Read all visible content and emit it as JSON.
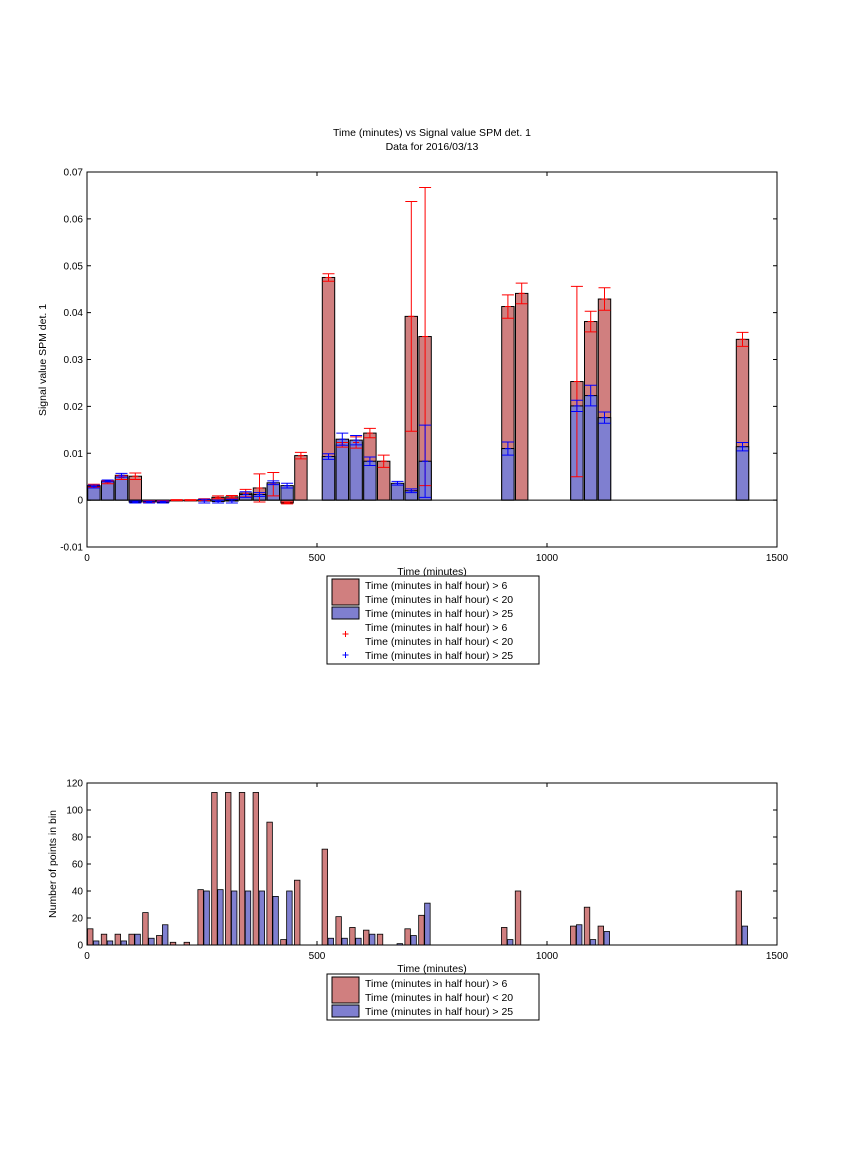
{
  "colors": {
    "series1": "#d07f7f",
    "series2": "#7f7fd0",
    "err1": "#ff0000",
    "err2": "#0000ff",
    "axis": "#000000"
  },
  "chart_data": [
    {
      "type": "bar",
      "title": "Time (minutes) vs Signal value SPM det. 1",
      "subtitle": "Data for 2016/03/13",
      "xlabel": "Time (minutes)",
      "ylabel": "Signal value SPM det. 1",
      "xlim": [
        0,
        1500
      ],
      "ylim": [
        -0.01,
        0.07
      ],
      "xticks": [
        "0",
        "500",
        "1000",
        "1500"
      ],
      "xtick_values": [
        0,
        500,
        1000,
        1500
      ],
      "yticks": [
        "-0.01",
        "0",
        "0.01",
        "0.02",
        "0.03",
        "0.04",
        "0.05",
        "0.06",
        "0.07"
      ],
      "ytick_values": [
        -0.01,
        0,
        0.01,
        0.02,
        0.03,
        0.04,
        0.05,
        0.06,
        0.07
      ],
      "grid": false,
      "legend_position": "bottom-outside",
      "legend": [
        {
          "kind": "bar",
          "series": 0,
          "lines": [
            "Time (minutes in half hour) > 6",
            "Time (minutes in half hour) < 20"
          ]
        },
        {
          "kind": "bar",
          "series": 1,
          "lines": [
            "Time (minutes in half hour) > 25"
          ]
        },
        {
          "kind": "marker",
          "series": 0,
          "lines": [
            "Time (minutes in half hour) > 6",
            "Time (minutes in half hour) < 20"
          ]
        },
        {
          "kind": "marker",
          "series": 1,
          "lines": [
            "Time (minutes in half hour) > 25"
          ]
        }
      ],
      "series": [
        {
          "points": [
            {
              "x": 15,
              "y": 0.0031,
              "e": 0.0003
            },
            {
              "x": 45,
              "y": 0.0038,
              "e": 0.0003
            },
            {
              "x": 75,
              "y": 0.0048,
              "e": 0.0004
            },
            {
              "x": 105,
              "y": 0.0051,
              "e": 0.0007
            },
            {
              "x": 135,
              "y": -0.0003,
              "e": 0.0002
            },
            {
              "x": 165,
              "y": -0.0002,
              "e": 0.0001
            },
            {
              "x": 195,
              "y": 0.0,
              "e": 0.0001
            },
            {
              "x": 225,
              "y": 0.0,
              "e": 0.0001
            },
            {
              "x": 255,
              "y": 0.0001,
              "e": 0.0002
            },
            {
              "x": 285,
              "y": 0.0006,
              "e": 0.0003
            },
            {
              "x": 315,
              "y": 0.0007,
              "e": 0.0003
            },
            {
              "x": 345,
              "y": 0.0015,
              "e": 0.0008
            },
            {
              "x": 375,
              "y": 0.0026,
              "e": 0.003
            },
            {
              "x": 405,
              "y": 0.0034,
              "e": 0.0025
            },
            {
              "x": 435,
              "y": -0.0006,
              "e": 0.0002
            },
            {
              "x": 465,
              "y": 0.0095,
              "e": 0.0007
            },
            {
              "x": 525,
              "y": 0.0475,
              "e": 0.0008
            },
            {
              "x": 555,
              "y": 0.0118,
              "e": 0.0005
            },
            {
              "x": 585,
              "y": 0.0123,
              "e": 0.0012
            },
            {
              "x": 615,
              "y": 0.0143,
              "e": 0.001
            },
            {
              "x": 645,
              "y": 0.0083,
              "e": 0.0013
            },
            {
              "x": 705,
              "y": 0.0392,
              "e": 0.0245
            },
            {
              "x": 735,
              "y": 0.0349,
              "e": 0.0318
            },
            {
              "x": 915,
              "y": 0.0413,
              "e": 0.0025
            },
            {
              "x": 945,
              "y": 0.0441,
              "e": 0.0022
            },
            {
              "x": 1065,
              "y": 0.0253,
              "e": 0.0203
            },
            {
              "x": 1095,
              "y": 0.0381,
              "e": 0.0022
            },
            {
              "x": 1125,
              "y": 0.0429,
              "e": 0.0024
            },
            {
              "x": 1425,
              "y": 0.0343,
              "e": 0.0015
            }
          ]
        },
        {
          "points": [
            {
              "x": 15,
              "y": 0.0029,
              "e": 0.0003
            },
            {
              "x": 45,
              "y": 0.0041,
              "e": 0.0002
            },
            {
              "x": 75,
              "y": 0.0053,
              "e": 0.0004
            },
            {
              "x": 105,
              "y": -0.0004,
              "e": 0.0002
            },
            {
              "x": 135,
              "y": -0.0004,
              "e": 0.0002
            },
            {
              "x": 165,
              "y": -0.0004,
              "e": 0.0002
            },
            {
              "x": 255,
              "y": -0.0002,
              "e": 0.0004
            },
            {
              "x": 285,
              "y": -0.0003,
              "e": 0.0003
            },
            {
              "x": 315,
              "y": -0.0002,
              "e": 0.0004
            },
            {
              "x": 345,
              "y": 0.0012,
              "e": 0.0006
            },
            {
              "x": 375,
              "y": 0.0012,
              "e": 0.0004
            },
            {
              "x": 405,
              "y": 0.0037,
              "e": 0.0004
            },
            {
              "x": 435,
              "y": 0.0031,
              "e": 0.0005
            },
            {
              "x": 525,
              "y": 0.0093,
              "e": 0.0006
            },
            {
              "x": 555,
              "y": 0.013,
              "e": 0.0013
            },
            {
              "x": 585,
              "y": 0.0128,
              "e": 0.001
            },
            {
              "x": 615,
              "y": 0.0083,
              "e": 0.0009
            },
            {
              "x": 675,
              "y": 0.0036,
              "e": 0.0004
            },
            {
              "x": 705,
              "y": 0.002,
              "e": 0.0004
            },
            {
              "x": 735,
              "y": 0.0083,
              "e": 0.0077
            },
            {
              "x": 915,
              "y": 0.011,
              "e": 0.0014
            },
            {
              "x": 1065,
              "y": 0.0201,
              "e": 0.0012
            },
            {
              "x": 1095,
              "y": 0.0223,
              "e": 0.0022
            },
            {
              "x": 1125,
              "y": 0.0176,
              "e": 0.0012
            },
            {
              "x": 1425,
              "y": 0.0114,
              "e": 0.0009
            }
          ]
        }
      ]
    },
    {
      "type": "bar",
      "title": "",
      "xlabel": "Time (minutes)",
      "ylabel": "Number of points in bin",
      "xlim": [
        0,
        1500
      ],
      "ylim": [
        0,
        120
      ],
      "xticks": [
        "0",
        "500",
        "1000",
        "1500"
      ],
      "xtick_values": [
        0,
        500,
        1000,
        1500
      ],
      "yticks": [
        "0",
        "20",
        "40",
        "60",
        "80",
        "100",
        "120"
      ],
      "ytick_values": [
        0,
        20,
        40,
        60,
        80,
        100,
        120
      ],
      "grid": false,
      "legend_position": "bottom-outside",
      "legend": [
        {
          "kind": "bar",
          "series": 0,
          "lines": [
            "Time (minutes in half hour) > 6",
            "Time (minutes in half hour) < 20"
          ]
        },
        {
          "kind": "bar",
          "series": 1,
          "lines": [
            "Time (minutes in half hour) > 25"
          ]
        }
      ],
      "series": [
        {
          "points": [
            {
              "x": 7,
              "y": 12
            },
            {
              "x": 37,
              "y": 8
            },
            {
              "x": 67,
              "y": 8
            },
            {
              "x": 97,
              "y": 8
            },
            {
              "x": 127,
              "y": 24
            },
            {
              "x": 157,
              "y": 7
            },
            {
              "x": 187,
              "y": 2
            },
            {
              "x": 217,
              "y": 2
            },
            {
              "x": 247,
              "y": 41
            },
            {
              "x": 277,
              "y": 113
            },
            {
              "x": 307,
              "y": 113
            },
            {
              "x": 337,
              "y": 113
            },
            {
              "x": 367,
              "y": 113
            },
            {
              "x": 397,
              "y": 91
            },
            {
              "x": 427,
              "y": 4
            },
            {
              "x": 457,
              "y": 48
            },
            {
              "x": 517,
              "y": 71
            },
            {
              "x": 547,
              "y": 21
            },
            {
              "x": 577,
              "y": 13
            },
            {
              "x": 607,
              "y": 11
            },
            {
              "x": 637,
              "y": 8
            },
            {
              "x": 697,
              "y": 12
            },
            {
              "x": 727,
              "y": 22
            },
            {
              "x": 907,
              "y": 13
            },
            {
              "x": 937,
              "y": 40
            },
            {
              "x": 1057,
              "y": 14
            },
            {
              "x": 1087,
              "y": 28
            },
            {
              "x": 1117,
              "y": 14
            },
            {
              "x": 1417,
              "y": 40
            }
          ]
        },
        {
          "points": [
            {
              "x": 20,
              "y": 3
            },
            {
              "x": 50,
              "y": 3
            },
            {
              "x": 80,
              "y": 3
            },
            {
              "x": 110,
              "y": 8
            },
            {
              "x": 140,
              "y": 5
            },
            {
              "x": 170,
              "y": 15
            },
            {
              "x": 260,
              "y": 40
            },
            {
              "x": 290,
              "y": 41
            },
            {
              "x": 320,
              "y": 40
            },
            {
              "x": 350,
              "y": 40
            },
            {
              "x": 380,
              "y": 40
            },
            {
              "x": 410,
              "y": 36
            },
            {
              "x": 440,
              "y": 40
            },
            {
              "x": 530,
              "y": 5
            },
            {
              "x": 560,
              "y": 5
            },
            {
              "x": 590,
              "y": 5
            },
            {
              "x": 620,
              "y": 8
            },
            {
              "x": 680,
              "y": 1
            },
            {
              "x": 710,
              "y": 7
            },
            {
              "x": 740,
              "y": 31
            },
            {
              "x": 920,
              "y": 4
            },
            {
              "x": 1070,
              "y": 15
            },
            {
              "x": 1100,
              "y": 4
            },
            {
              "x": 1130,
              "y": 10
            },
            {
              "x": 1430,
              "y": 14
            }
          ]
        }
      ]
    }
  ]
}
